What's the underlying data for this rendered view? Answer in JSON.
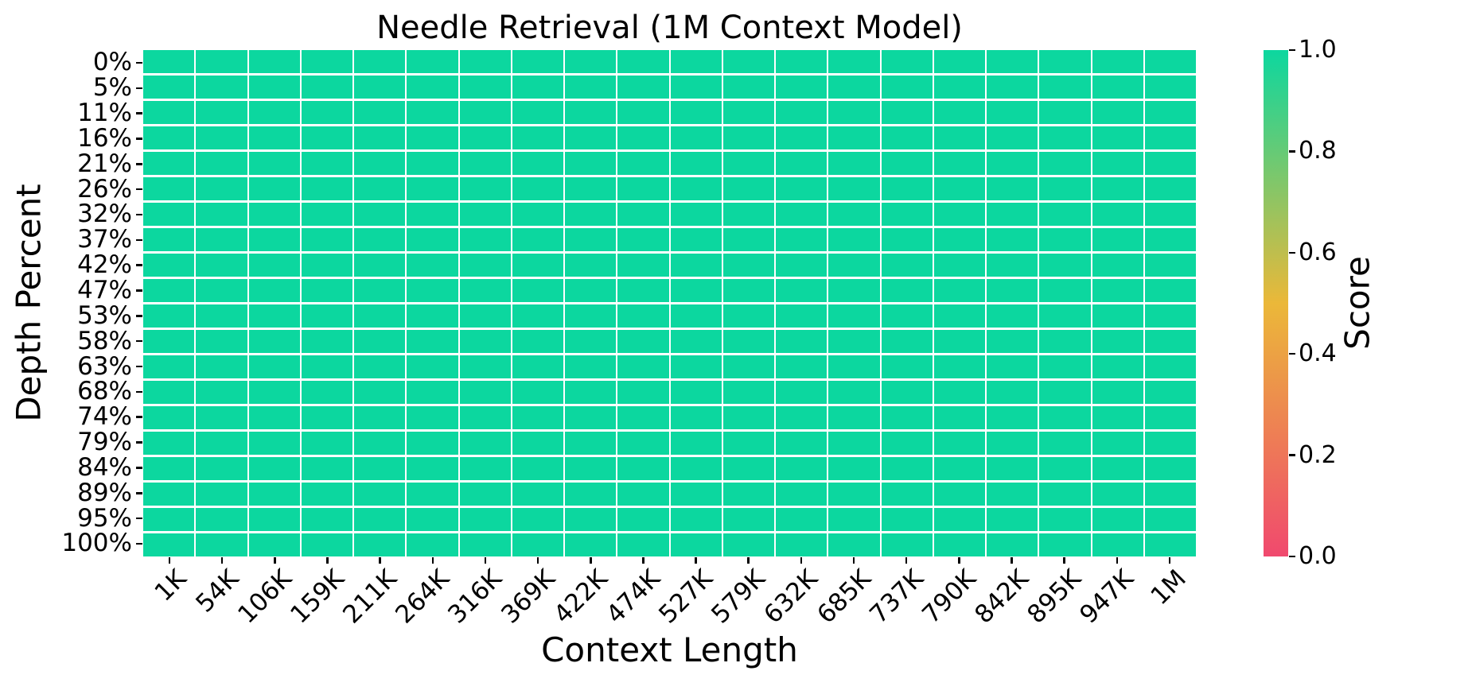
{
  "chart_data": {
    "type": "heatmap",
    "title": "Needle Retrieval (1M Context Model)",
    "xlabel": "Context Length",
    "ylabel": "Depth Percent",
    "x_tick_labels": [
      "1K",
      "54K",
      "106K",
      "159K",
      "211K",
      "264K",
      "316K",
      "369K",
      "422K",
      "474K",
      "527K",
      "579K",
      "632K",
      "685K",
      "737K",
      "790K",
      "842K",
      "895K",
      "947K",
      "1M"
    ],
    "y_tick_labels": [
      "0%",
      "5%",
      "11%",
      "16%",
      "21%",
      "26%",
      "32%",
      "37%",
      "42%",
      "47%",
      "53%",
      "58%",
      "63%",
      "68%",
      "74%",
      "79%",
      "84%",
      "89%",
      "95%",
      "100%"
    ],
    "values": [
      [
        1,
        1,
        1,
        1,
        1,
        1,
        1,
        1,
        1,
        1,
        1,
        1,
        1,
        1,
        1,
        1,
        1,
        1,
        1,
        1
      ],
      [
        1,
        1,
        1,
        1,
        1,
        1,
        1,
        1,
        1,
        1,
        1,
        1,
        1,
        1,
        1,
        1,
        1,
        1,
        1,
        1
      ],
      [
        1,
        1,
        1,
        1,
        1,
        1,
        1,
        1,
        1,
        1,
        1,
        1,
        1,
        1,
        1,
        1,
        1,
        1,
        1,
        1
      ],
      [
        1,
        1,
        1,
        1,
        1,
        1,
        1,
        1,
        1,
        1,
        1,
        1,
        1,
        1,
        1,
        1,
        1,
        1,
        1,
        1
      ],
      [
        1,
        1,
        1,
        1,
        1,
        1,
        1,
        1,
        1,
        1,
        1,
        1,
        1,
        1,
        1,
        1,
        1,
        1,
        1,
        1
      ],
      [
        1,
        1,
        1,
        1,
        1,
        1,
        1,
        1,
        1,
        1,
        1,
        1,
        1,
        1,
        1,
        1,
        1,
        1,
        1,
        1
      ],
      [
        1,
        1,
        1,
        1,
        1,
        1,
        1,
        1,
        1,
        1,
        1,
        1,
        1,
        1,
        1,
        1,
        1,
        1,
        1,
        1
      ],
      [
        1,
        1,
        1,
        1,
        1,
        1,
        1,
        1,
        1,
        1,
        1,
        1,
        1,
        1,
        1,
        1,
        1,
        1,
        1,
        1
      ],
      [
        1,
        1,
        1,
        1,
        1,
        1,
        1,
        1,
        1,
        1,
        1,
        1,
        1,
        1,
        1,
        1,
        1,
        1,
        1,
        1
      ],
      [
        1,
        1,
        1,
        1,
        1,
        1,
        1,
        1,
        1,
        1,
        1,
        1,
        1,
        1,
        1,
        1,
        1,
        1,
        1,
        1
      ],
      [
        1,
        1,
        1,
        1,
        1,
        1,
        1,
        1,
        1,
        1,
        1,
        1,
        1,
        1,
        1,
        1,
        1,
        1,
        1,
        1
      ],
      [
        1,
        1,
        1,
        1,
        1,
        1,
        1,
        1,
        1,
        1,
        1,
        1,
        1,
        1,
        1,
        1,
        1,
        1,
        1,
        1
      ],
      [
        1,
        1,
        1,
        1,
        1,
        1,
        1,
        1,
        1,
        1,
        1,
        1,
        1,
        1,
        1,
        1,
        1,
        1,
        1,
        1
      ],
      [
        1,
        1,
        1,
        1,
        1,
        1,
        1,
        1,
        1,
        1,
        1,
        1,
        1,
        1,
        1,
        1,
        1,
        1,
        1,
        1
      ],
      [
        1,
        1,
        1,
        1,
        1,
        1,
        1,
        1,
        1,
        1,
        1,
        1,
        1,
        1,
        1,
        1,
        1,
        1,
        1,
        1
      ],
      [
        1,
        1,
        1,
        1,
        1,
        1,
        1,
        1,
        1,
        1,
        1,
        1,
        1,
        1,
        1,
        1,
        1,
        1,
        1,
        1
      ],
      [
        1,
        1,
        1,
        1,
        1,
        1,
        1,
        1,
        1,
        1,
        1,
        1,
        1,
        1,
        1,
        1,
        1,
        1,
        1,
        1
      ],
      [
        1,
        1,
        1,
        1,
        1,
        1,
        1,
        1,
        1,
        1,
        1,
        1,
        1,
        1,
        1,
        1,
        1,
        1,
        1,
        1
      ],
      [
        1,
        1,
        1,
        1,
        1,
        1,
        1,
        1,
        1,
        1,
        1,
        1,
        1,
        1,
        1,
        1,
        1,
        1,
        1,
        1
      ],
      [
        1,
        1,
        1,
        1,
        1,
        1,
        1,
        1,
        1,
        1,
        1,
        1,
        1,
        1,
        1,
        1,
        1,
        1,
        1,
        1
      ]
    ],
    "value_range": [
      0.0,
      1.0
    ],
    "grid_lines": "on",
    "grid_line_color": "#ffffff",
    "colormap_stops": [
      {
        "pos": 0.0,
        "color": "#F0496E"
      },
      {
        "pos": 0.5,
        "color": "#EBB839"
      },
      {
        "pos": 1.0,
        "color": "#0CD79F"
      }
    ],
    "colorbar": {
      "label": "Score",
      "position": "right",
      "tick_labels_top_to_bottom": [
        "1.0",
        "0.8",
        "0.6",
        "0.4",
        "0.2",
        "0.0"
      ],
      "min": 0.0,
      "max": 1.0
    }
  }
}
